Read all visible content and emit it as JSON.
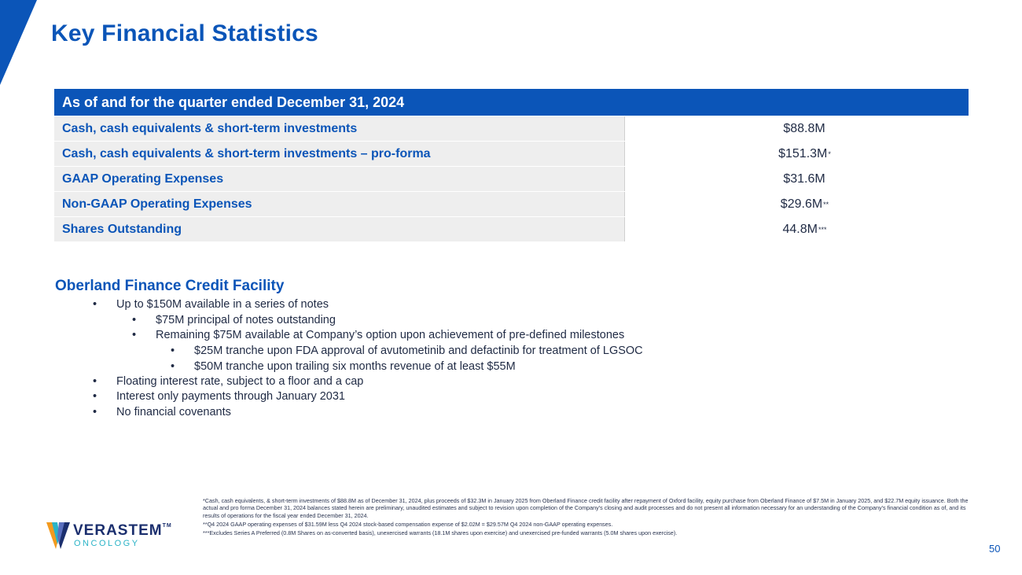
{
  "header": {
    "title": "Key Financial Statistics"
  },
  "table": {
    "heading": "As of and for the quarter ended December 31, 2024",
    "rows": [
      {
        "label": "Cash, cash equivalents & short-term investments",
        "value": "$88.8M",
        "mark": ""
      },
      {
        "label": "Cash, cash equivalents & short-term investments – pro-forma",
        "value": "$151.3M",
        "mark": "*"
      },
      {
        "label": "GAAP Operating Expenses",
        "value": "$31.6M",
        "mark": ""
      },
      {
        "label": "Non-GAAP Operating Expenses",
        "value": "$29.6M",
        "mark": "**"
      },
      {
        "label": "Shares Outstanding",
        "value": "44.8M",
        "mark": "***"
      }
    ]
  },
  "facility": {
    "title": "Oberland Finance Credit Facility",
    "bullets": [
      {
        "text": "Up to $150M available in a series of notes"
      },
      {
        "text": "$75M principal of notes outstanding"
      },
      {
        "text": "Remaining $75M available at Company’s option upon achievement of pre-defined milestones"
      },
      {
        "text": "$25M tranche upon FDA approval of avutometinib and defactinib for treatment of LGSOC"
      },
      {
        "text": "$50M tranche upon trailing six months revenue of at least $55M"
      },
      {
        "text": "Floating interest rate, subject to a floor and a cap"
      },
      {
        "text": "Interest only payments through January 2031"
      },
      {
        "text": "No financial covenants"
      }
    ]
  },
  "footnotes": {
    "note1": "*Cash, cash equivalents, & short-term investments of $88.8M as of December 31, 2024, plus proceeds of $32.3M in January 2025 from Oberland Finance credit facility after repayment of Oxford facility, equity purchase from Oberland Finance of $7.5M in January 2025, and $22.7M equity issuance. Both the actual and pro forma December 31, 2024 balances stated herein are preliminary, unaudited estimates and subject to revision upon completion of the Company’s closing and audit processes and do not present all information necessary for an understanding of the Company’s financial condition as of, and its results of operations for the fiscal year ended December 31, 2024.",
    "note2": "**Q4 2024 GAAP operating expenses of $31.59M less Q4 2024 stock-based compensation expense of $2.02M = $29.57M Q4 2024 non-GAAP operating expenses.",
    "note3": "***Excludes Series A Preferred (0.8M Shares on as-converted basis), unexercised warrants (18.1M shares upon exercise) and unexercised pre-funded warrants (5.0M shares upon exercise)."
  },
  "logo": {
    "name": "VERASTEM",
    "tm": "TM",
    "sub": "ONCOLOGY"
  },
  "page": {
    "number": "50"
  },
  "colors": {
    "brand_blue": "#0b55b8",
    "row_bg": "#eeeeee",
    "logo_teal": "#2bb3c7",
    "logo_orange": "#f39a1e"
  }
}
